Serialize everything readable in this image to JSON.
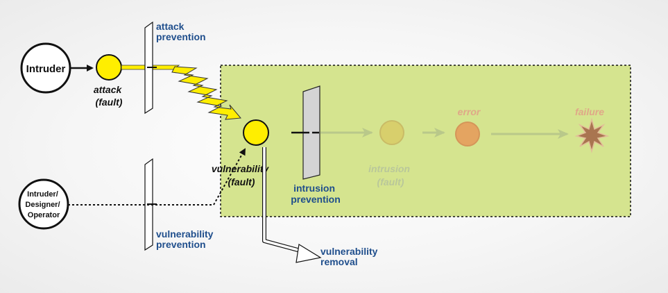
{
  "actors": {
    "intruder": "Intruder",
    "intruder_designer_operator": [
      "Intruder/",
      "Designer/",
      "Operator"
    ]
  },
  "labels": {
    "attack_prevention": [
      "attack",
      "prevention"
    ],
    "attack_fault": [
      "attack",
      "(fault)"
    ],
    "vulnerability_fault": [
      "vulnerability",
      "(fault)"
    ],
    "vulnerability_prevention": [
      "vulnerability",
      "prevention"
    ],
    "vulnerability_removal": [
      "vulnerability",
      "removal"
    ],
    "intrusion_prevention": [
      "intrusion",
      "prevention"
    ],
    "intrusion_fault": [
      "intrusion",
      "(fault)"
    ],
    "error": "error",
    "failure": "failure"
  },
  "colors": {
    "system_region": "#d5e48f",
    "fault_circle": "#ffee00",
    "error_circle": "#e79a5a",
    "label_blue": "#1f4e8c"
  }
}
